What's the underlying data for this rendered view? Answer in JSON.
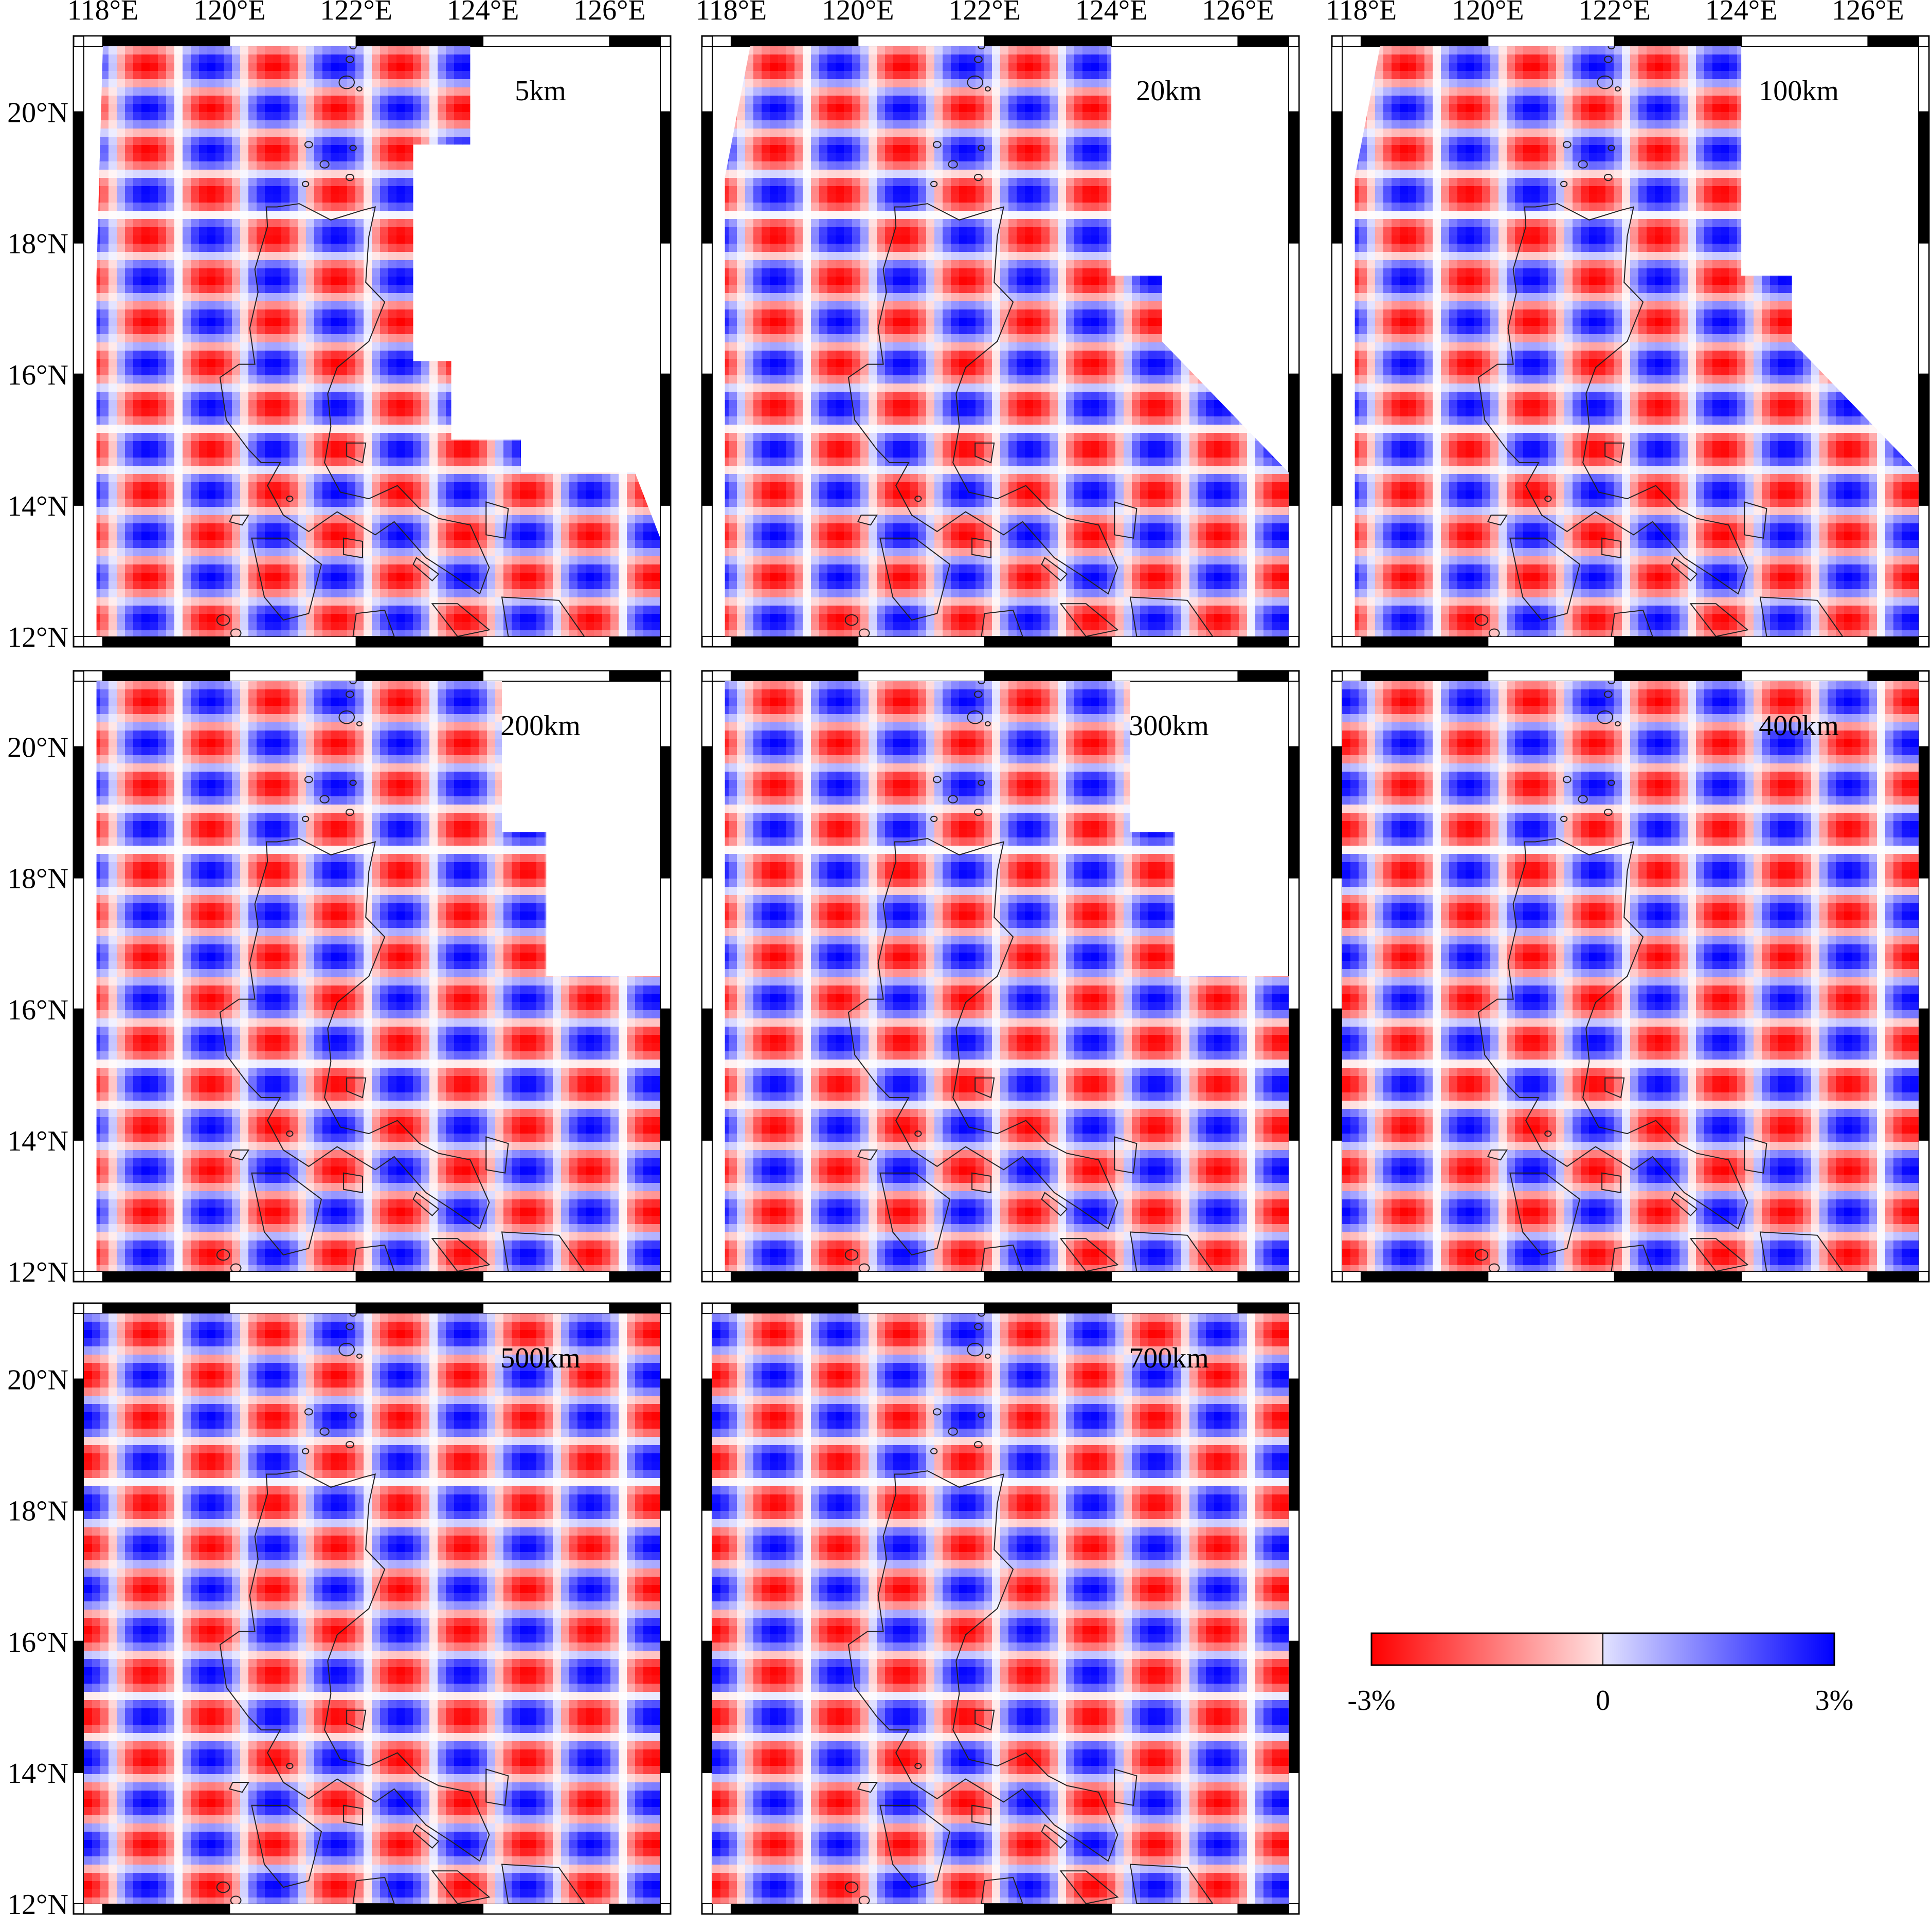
{
  "figure": {
    "lon_labels": [
      "118°E",
      "120°E",
      "122°E",
      "124°E",
      "126°E"
    ],
    "lat_labels": [
      "20°N",
      "18°N",
      "16°N",
      "14°N",
      "12°N"
    ],
    "map_extent": {
      "lon_min": 117.7,
      "lon_max": 126.8,
      "lat_min": 12.0,
      "lat_max": 21.0
    },
    "panels": [
      {
        "depth_label": "5km",
        "coverage": "sparse"
      },
      {
        "depth_label": "20km",
        "coverage": "medium"
      },
      {
        "depth_label": "100km",
        "coverage": "medium"
      },
      {
        "depth_label": "200km",
        "coverage": "wide"
      },
      {
        "depth_label": "300km",
        "coverage": "wide"
      },
      {
        "depth_label": "400km",
        "coverage": "full"
      },
      {
        "depth_label": "500km",
        "coverage": "full"
      },
      {
        "depth_label": "700km",
        "coverage": "full"
      }
    ],
    "colorbar": {
      "labels": [
        "-3%",
        "0",
        "3%"
      ],
      "min": -3,
      "max": 3,
      "colors": [
        "#ff0000",
        "#ffffff",
        "#0000ff"
      ]
    },
    "colors": {
      "positive": "#0000ff",
      "negative": "#ff0000",
      "coast": "#222222"
    }
  }
}
